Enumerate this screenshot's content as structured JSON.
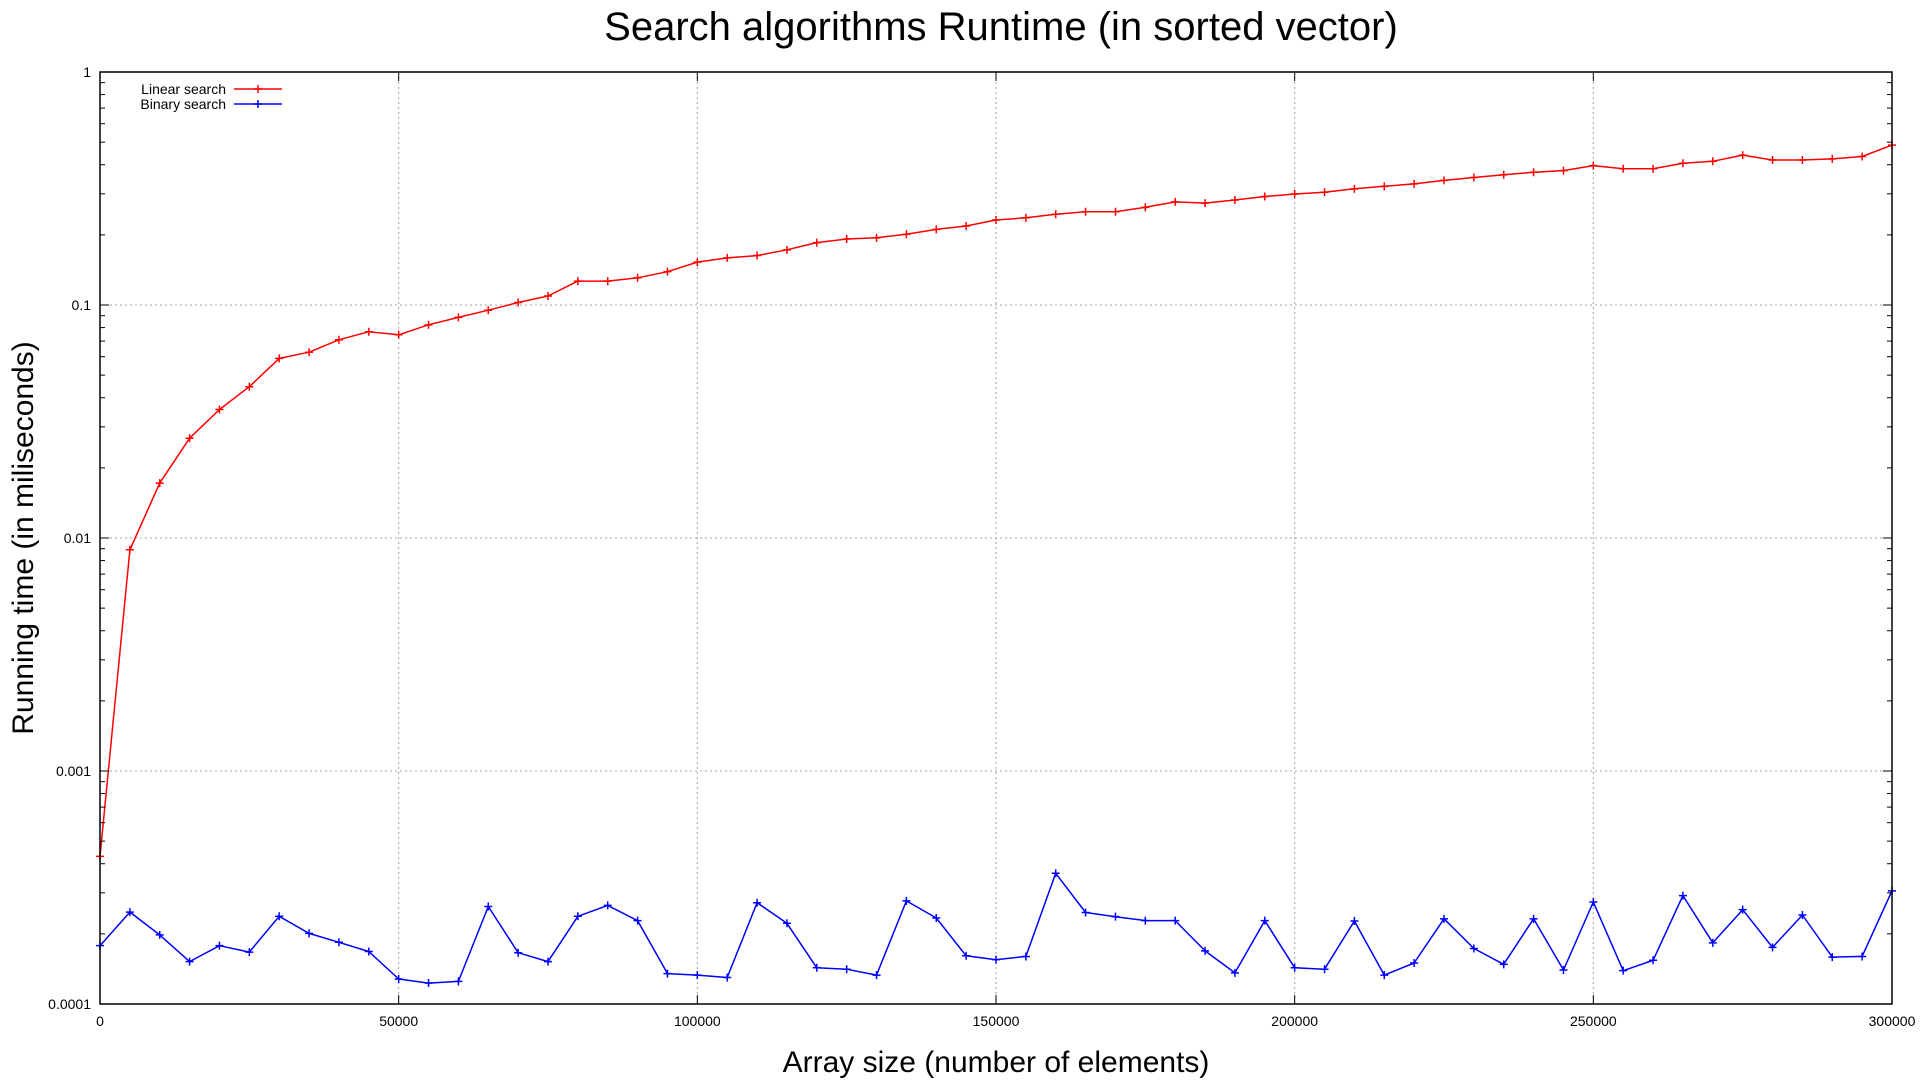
{
  "chart_data": {
    "type": "line",
    "title": "Search algorithms Runtime (in sorted vector)",
    "xlabel": "Array size (number of elements)",
    "ylabel": "Running time (in miliseconds)",
    "xlim": [
      0,
      300000
    ],
    "ylim": [
      0.0001,
      1
    ],
    "yscale": "log",
    "grid": true,
    "legend_position": "top-left",
    "x_ticks": [
      0,
      50000,
      100000,
      150000,
      200000,
      250000,
      300000
    ],
    "x_tick_labels": [
      "0",
      "50000",
      "100000",
      "150000",
      "200000",
      "250000",
      "300000"
    ],
    "y_ticks": [
      0.0001,
      0.001,
      0.01,
      0.1,
      1
    ],
    "y_tick_labels": [
      "0.0001",
      "0.001",
      "0.01",
      "0.1",
      "1"
    ],
    "x": [
      0,
      5000,
      10000,
      15000,
      20000,
      25000,
      30000,
      35000,
      40000,
      45000,
      50000,
      55000,
      60000,
      65000,
      70000,
      75000,
      80000,
      85000,
      90000,
      95000,
      100000,
      105000,
      110000,
      115000,
      120000,
      125000,
      130000,
      135000,
      140000,
      145000,
      150000,
      155000,
      160000,
      165000,
      170000,
      175000,
      180000,
      185000,
      190000,
      195000,
      200000,
      205000,
      210000,
      215000,
      220000,
      225000,
      230000,
      235000,
      240000,
      245000,
      250000,
      255000,
      260000,
      265000,
      270000,
      275000,
      280000,
      285000,
      290000,
      295000,
      300000
    ],
    "series": [
      {
        "name": "Linear search",
        "color": "#ff0000",
        "values": [
          0.00043,
          0.0089,
          0.0172,
          0.0268,
          0.0356,
          0.0446,
          0.059,
          0.0627,
          0.0709,
          0.0768,
          0.0745,
          0.0822,
          0.0885,
          0.095,
          0.1025,
          0.1093,
          0.1266,
          0.1266,
          0.1309,
          0.139,
          0.1528,
          0.1593,
          0.163,
          0.1725,
          0.1853,
          0.1919,
          0.1942,
          0.2013,
          0.2111,
          0.2183,
          0.2316,
          0.2367,
          0.2453,
          0.2513,
          0.2513,
          0.2625,
          0.2771,
          0.2737,
          0.2823,
          0.2921,
          0.2994,
          0.3046,
          0.3152,
          0.3231,
          0.3309,
          0.3426,
          0.3525,
          0.3622,
          0.3713,
          0.3775,
          0.3965,
          0.3844,
          0.3844,
          0.406,
          0.4138,
          0.4399,
          0.4193,
          0.4193,
          0.4237,
          0.4337,
          0.4856
        ]
      },
      {
        "name": "Binary search",
        "color": "#0000ff",
        "values": [
          0.000178,
          0.000248,
          0.000198,
          0.000152,
          0.000178,
          0.000167,
          0.000238,
          0.000201,
          0.000184,
          0.000168,
          0.000128,
          0.000123,
          0.000125,
          0.000262,
          0.000166,
          0.000152,
          0.000238,
          0.000265,
          0.000228,
          0.000135,
          0.000133,
          0.00013,
          0.000272,
          0.000222,
          0.000143,
          0.000141,
          0.000133,
          0.000277,
          0.000234,
          0.000161,
          0.000155,
          0.00016,
          0.000364,
          0.000247,
          0.000237,
          0.000228,
          0.000228,
          0.000169,
          0.000136,
          0.000228,
          0.000143,
          0.000141,
          0.000227,
          0.000133,
          0.00015,
          0.000232,
          0.000173,
          0.000148,
          0.000232,
          0.00014,
          0.000274,
          0.000139,
          0.000154,
          0.000292,
          0.000183,
          0.000254,
          0.000175,
          0.000241,
          0.000159,
          0.00016,
          0.000306
        ]
      }
    ]
  }
}
